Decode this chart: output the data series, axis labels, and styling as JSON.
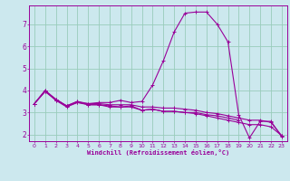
{
  "bg_color": "#cce8ee",
  "line_color": "#990099",
  "grid_color": "#99ccbb",
  "xlabel": "Windchill (Refroidissement éolien,°C)",
  "xlabel_color": "#990099",
  "xlim": [
    -0.5,
    23.5
  ],
  "ylim": [
    1.7,
    7.85
  ],
  "yticks": [
    2,
    3,
    4,
    5,
    6,
    7
  ],
  "xticks": [
    0,
    1,
    2,
    3,
    4,
    5,
    6,
    7,
    8,
    9,
    10,
    11,
    12,
    13,
    14,
    15,
    16,
    17,
    18,
    19,
    20,
    21,
    22,
    23
  ],
  "series": [
    {
      "x": [
        0,
        1,
        2,
        3,
        4,
        5,
        6,
        7,
        8,
        9,
        10,
        11,
        12,
        13,
        14,
        15,
        16,
        17,
        18,
        19
      ],
      "y": [
        3.4,
        3.95,
        3.6,
        3.3,
        3.5,
        3.35,
        3.35,
        3.3,
        3.25,
        3.3,
        3.1,
        3.15,
        3.05,
        3.05,
        3.0,
        3.0,
        2.9,
        2.85,
        2.75,
        2.65
      ]
    },
    {
      "x": [
        0,
        1,
        2,
        3,
        4,
        5,
        6,
        7,
        8,
        9,
        10,
        11,
        12,
        13,
        14,
        15,
        16,
        17,
        18,
        19,
        20,
        21,
        22,
        23
      ],
      "y": [
        3.4,
        4.0,
        3.55,
        3.25,
        3.45,
        3.4,
        3.45,
        3.45,
        3.55,
        3.45,
        3.5,
        4.25,
        5.35,
        6.65,
        7.5,
        7.55,
        7.55,
        7.0,
        6.2,
        2.9,
        1.85,
        2.6,
        2.6,
        1.9
      ]
    },
    {
      "x": [
        0,
        1,
        2,
        3,
        4,
        5,
        6,
        7,
        8,
        9,
        10,
        11,
        12,
        13,
        14,
        15,
        16,
        17,
        18,
        19,
        20,
        21,
        22,
        23
      ],
      "y": [
        3.4,
        3.95,
        3.55,
        3.3,
        3.45,
        3.35,
        3.35,
        3.25,
        3.25,
        3.25,
        3.1,
        3.15,
        3.05,
        3.05,
        3.0,
        2.95,
        2.85,
        2.75,
        2.65,
        2.55,
        2.45,
        2.45,
        2.35,
        1.95
      ]
    },
    {
      "x": [
        0,
        1,
        2,
        3,
        4,
        5,
        6,
        7,
        8,
        9,
        10,
        11,
        12,
        13,
        14,
        15,
        16,
        17,
        18,
        19,
        20,
        21,
        22,
        23
      ],
      "y": [
        3.4,
        4.0,
        3.6,
        3.3,
        3.5,
        3.4,
        3.4,
        3.35,
        3.35,
        3.35,
        3.25,
        3.25,
        3.2,
        3.2,
        3.15,
        3.1,
        3.0,
        2.95,
        2.85,
        2.75,
        2.65,
        2.65,
        2.55,
        1.95
      ]
    }
  ]
}
